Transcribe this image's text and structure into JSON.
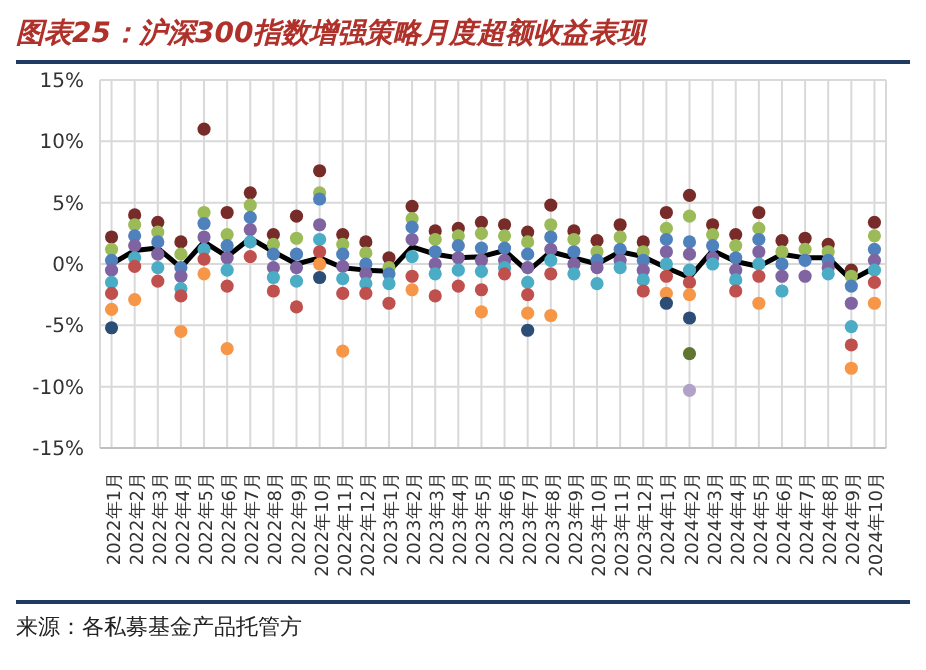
{
  "chart_data": {
    "type": "scatter",
    "title": "图表25：沪深300指数增强策略月度超额收益表现",
    "categories": [
      "2022年1月",
      "2022年2月",
      "2022年3月",
      "2022年4月",
      "2022年5月",
      "2022年6月",
      "2022年7月",
      "2022年8月",
      "2022年9月",
      "2022年10月",
      "2022年11月",
      "2022年12月",
      "2023年1月",
      "2023年2月",
      "2023年3月",
      "2023年4月",
      "2023年5月",
      "2023年6月",
      "2023年7月",
      "2023年8月",
      "2023年9月",
      "2023年10月",
      "2023年11月",
      "2023年12月",
      "2024年1月",
      "2024年2月",
      "2024年3月",
      "2024年4月",
      "2024年5月",
      "2024年6月",
      "2024年7月",
      "2024年8月",
      "2024年9月",
      "2024年10月"
    ],
    "series": [
      {
        "color": "#772c2a",
        "values": [
          2.2,
          4.0,
          3.4,
          1.8,
          11.0,
          4.2,
          5.8,
          2.4,
          3.9,
          7.6,
          2.4,
          1.8,
          0.5,
          4.7,
          2.7,
          2.9,
          3.4,
          3.2,
          2.6,
          4.8,
          2.7,
          1.9,
          3.2,
          1.8,
          4.2,
          5.6,
          3.2,
          2.4,
          4.2,
          1.9,
          2.1,
          1.6,
          -0.5,
          3.4
        ]
      },
      {
        "color": "#9bbb59",
        "values": [
          1.2,
          3.2,
          2.6,
          0.8,
          4.2,
          2.4,
          4.8,
          1.6,
          2.1,
          5.8,
          1.6,
          0.9,
          -0.3,
          3.7,
          2.0,
          2.3,
          2.5,
          2.3,
          1.8,
          3.2,
          2.0,
          1.0,
          2.2,
          1.0,
          2.9,
          3.9,
          2.4,
          1.5,
          2.9,
          1.0,
          1.2,
          1.0,
          -1.0,
          2.3
        ]
      },
      {
        "color": "#4f81bd",
        "values": [
          0.3,
          2.3,
          1.8,
          -0.3,
          3.3,
          1.5,
          3.8,
          0.8,
          0.8,
          5.3,
          0.8,
          0,
          -0.8,
          3.0,
          1.0,
          1.5,
          1.3,
          1.3,
          0.8,
          2.2,
          1.0,
          0.3,
          1.2,
          0.3,
          2.0,
          1.8,
          1.5,
          0.5,
          2.0,
          0,
          0.3,
          0.3,
          -1.8,
          1.2
        ]
      },
      {
        "color": "#8064a2",
        "values": [
          -0.5,
          1.5,
          0.8,
          -1.0,
          2.2,
          0.5,
          2.8,
          -0.3,
          -0.3,
          3.2,
          -0.2,
          -0.8,
          null,
          2.0,
          0,
          0.5,
          0.3,
          0.3,
          -0.3,
          1.2,
          0,
          -0.3,
          0.3,
          -0.5,
          1.0,
          0.8,
          0.5,
          -0.5,
          1.0,
          -1.0,
          -1.0,
          -0.3,
          -3.2,
          0.3
        ]
      },
      {
        "color": "#4bacc6",
        "values": [
          -1.5,
          0.5,
          -0.3,
          -2.0,
          1.2,
          -0.5,
          1.8,
          -1.1,
          -1.4,
          2.0,
          -1.2,
          -1.6,
          -1.6,
          0.6,
          -0.8,
          -0.5,
          -0.6,
          -0.3,
          -1.5,
          0.3,
          -0.8,
          -1.6,
          -0.3,
          -1.3,
          0,
          -0.5,
          0,
          -1.3,
          0,
          -2.2,
          null,
          -0.8,
          -5.1,
          -0.5
        ]
      },
      {
        "color": "#c0504d",
        "values": [
          -2.4,
          -0.2,
          -1.4,
          -2.6,
          0.4,
          -1.8,
          0.6,
          -2.2,
          -3.5,
          1.0,
          -2.4,
          -2.4,
          -3.2,
          -1.0,
          -2.6,
          -1.8,
          -2.1,
          -0.8,
          -2.5,
          -0.8,
          null,
          null,
          null,
          -2.2,
          -1.0,
          -1.5,
          null,
          -2.2,
          -1.0,
          null,
          null,
          null,
          -6.6,
          -1.5
        ]
      },
      {
        "color": "#f79646",
        "values": [
          -3.7,
          -2.9,
          null,
          -5.5,
          -0.8,
          -6.9,
          null,
          null,
          null,
          0,
          -7.1,
          null,
          null,
          -2.1,
          null,
          null,
          -3.9,
          null,
          -4.0,
          -4.2,
          null,
          null,
          null,
          null,
          -2.4,
          -2.5,
          null,
          null,
          -3.2,
          null,
          null,
          null,
          -8.5,
          -3.2
        ]
      },
      {
        "color": "#2c4d75",
        "values": [
          -5.2,
          null,
          null,
          null,
          null,
          null,
          null,
          null,
          null,
          -1.1,
          null,
          null,
          null,
          null,
          null,
          null,
          null,
          null,
          -5.4,
          null,
          null,
          null,
          null,
          null,
          -3.2,
          -4.4,
          null,
          null,
          null,
          null,
          null,
          null,
          null,
          null
        ]
      },
      {
        "color": "#5f7530",
        "values": [
          null,
          null,
          null,
          null,
          null,
          null,
          null,
          null,
          null,
          null,
          null,
          null,
          null,
          null,
          null,
          null,
          null,
          null,
          null,
          null,
          null,
          null,
          null,
          null,
          null,
          -7.3,
          null,
          null,
          null,
          null,
          null,
          null,
          null,
          null
        ]
      },
      {
        "color": "#b3a2c7",
        "values": [
          null,
          null,
          null,
          null,
          null,
          null,
          null,
          null,
          null,
          null,
          null,
          null,
          null,
          null,
          null,
          null,
          null,
          null,
          null,
          null,
          null,
          null,
          null,
          null,
          null,
          -10.3,
          null,
          null,
          null,
          null,
          null,
          null,
          null,
          null
        ]
      },
      {
        "type": "line",
        "color": "#000000",
        "marker": "none",
        "values": [
          0,
          1.1,
          1.3,
          -0.3,
          1.8,
          0.6,
          2.1,
          1.0,
          0,
          0.5,
          -0.3,
          -0.5,
          -0.6,
          1.4,
          0.8,
          0.5,
          0.6,
          1.1,
          -0.6,
          1.0,
          0.5,
          0,
          1.0,
          0.6,
          -0.3,
          -1.1,
          1.1,
          0.2,
          -0.2,
          0.8,
          0.5,
          0.5,
          -1.3,
          -0.3
        ]
      }
    ],
    "ylim": [
      -15,
      15
    ],
    "yticks": [
      {
        "value": -15,
        "label": "-15%"
      },
      {
        "value": -10,
        "label": "-10%"
      },
      {
        "value": -5,
        "label": "-5%"
      },
      {
        "value": 0,
        "label": "0%"
      },
      {
        "value": 5,
        "label": "5%"
      },
      {
        "value": 10,
        "label": "10%"
      },
      {
        "value": 15,
        "label": "15%"
      }
    ],
    "grid": true,
    "marker": "circle",
    "annotations": [
      "来源：各私募基金产品托管方"
    ]
  }
}
